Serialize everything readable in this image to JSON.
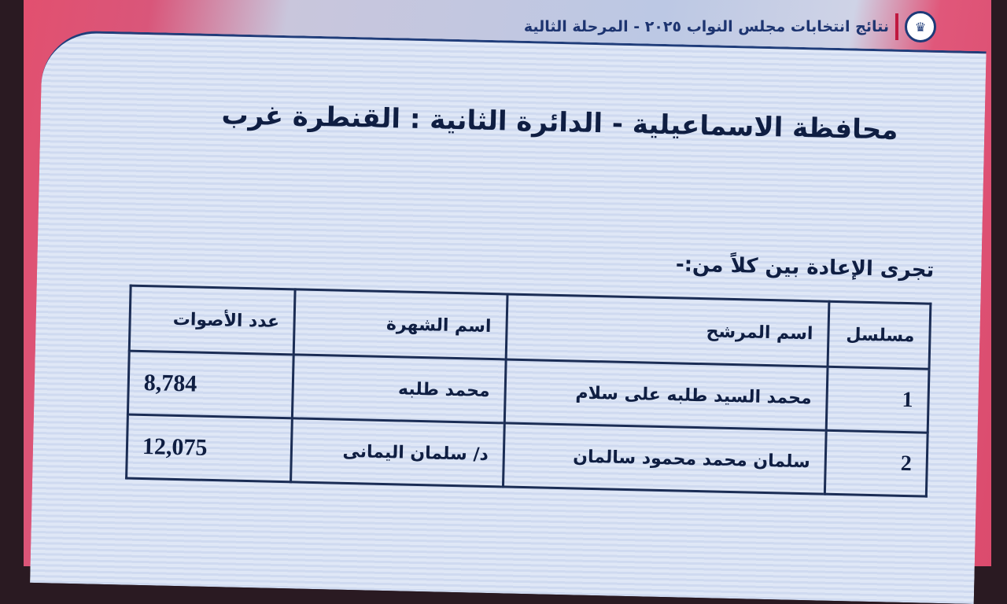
{
  "header": {
    "title": "نتائج انتخابات مجلس النواب ٢٠٢٥ - المرحلة الثالية",
    "logo_icon": "eagle-emblem-icon"
  },
  "slide": {
    "title": "محافظة الاسماعيلية - الدائرة الثانية : القنطرة غرب",
    "subtitle": "تجرى الإعادة بين كلاً من:-"
  },
  "table": {
    "headers": [
      "مسلسل",
      "اسم المرشح",
      "اسم الشهرة",
      "عدد الأصوات"
    ],
    "rows": [
      [
        "1",
        "محمد السيد طلبه على سلام",
        "محمد طلبه",
        "8,784"
      ],
      [
        "2",
        "سلمان محمد محمود سالمان",
        "د/ سلمان اليمانى",
        "12,075"
      ]
    ]
  },
  "colors": {
    "accent": "#d9567a",
    "text": "#0f1e42",
    "brand": "#1d3470"
  }
}
